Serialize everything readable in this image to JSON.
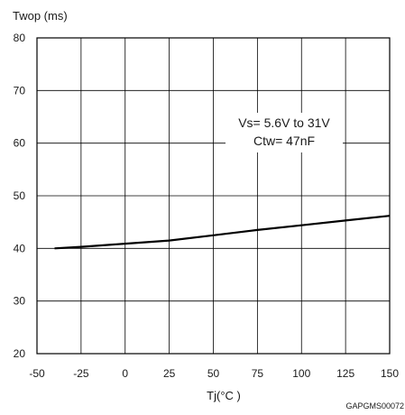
{
  "chart_data": {
    "type": "line",
    "ylabel": "Twop (ms)",
    "xlabel": "Tj(°C )",
    "xlim": [
      -50,
      150
    ],
    "ylim": [
      20,
      80
    ],
    "x_ticks": [
      "-50",
      "-25",
      "0",
      "25",
      "50",
      "75",
      "100",
      "125",
      "150"
    ],
    "y_ticks": [
      "20",
      "30",
      "40",
      "50",
      "60",
      "70",
      "80"
    ],
    "grid": true,
    "annotations": [
      "Vs= 5.6V to 31V",
      "Ctw= 47nF"
    ],
    "figure_id": "GAPGMS00072",
    "series": [
      {
        "x": [
          -40,
          -25,
          0,
          25,
          50,
          75,
          100,
          125,
          150
        ],
        "y": [
          40.0,
          40.3,
          40.9,
          41.5,
          42.5,
          43.5,
          44.4,
          45.3,
          46.2
        ]
      }
    ]
  }
}
